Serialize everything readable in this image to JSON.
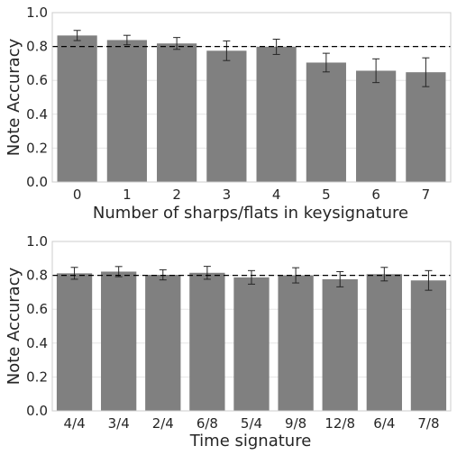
{
  "chart_data": [
    {
      "type": "bar",
      "xlabel": "Number of sharps/flats in keysignature",
      "ylabel": "Note Accuracy",
      "categories": [
        "0",
        "1",
        "2",
        "3",
        "4",
        "5",
        "6",
        "7"
      ],
      "values": [
        0.865,
        0.838,
        0.818,
        0.775,
        0.798,
        0.705,
        0.657,
        0.648
      ],
      "errors": [
        0.03,
        0.028,
        0.035,
        0.058,
        0.045,
        0.055,
        0.07,
        0.085
      ],
      "reference_line": 0.8,
      "ylim": [
        0,
        1.0
      ],
      "yticks": [
        "0.0",
        "0.2",
        "0.4",
        "0.6",
        "0.8",
        "1.0"
      ],
      "grid": true,
      "bar_color": "#808080",
      "error_color": "#262626"
    },
    {
      "type": "bar",
      "xlabel": "Time signature",
      "ylabel": "Note Accuracy",
      "categories": [
        "4/4",
        "3/4",
        "2/4",
        "6/8",
        "5/4",
        "9/8",
        "12/8",
        "6/4",
        "7/8"
      ],
      "values": [
        0.812,
        0.822,
        0.803,
        0.815,
        0.788,
        0.8,
        0.777,
        0.807,
        0.77
      ],
      "errors": [
        0.035,
        0.03,
        0.03,
        0.038,
        0.04,
        0.045,
        0.045,
        0.04,
        0.058
      ],
      "reference_line": 0.8,
      "ylim": [
        0,
        1.0
      ],
      "yticks": [
        "0.0",
        "0.2",
        "0.4",
        "0.6",
        "0.8",
        "1.0"
      ],
      "grid": true,
      "bar_color": "#808080",
      "error_color": "#262626"
    }
  ]
}
